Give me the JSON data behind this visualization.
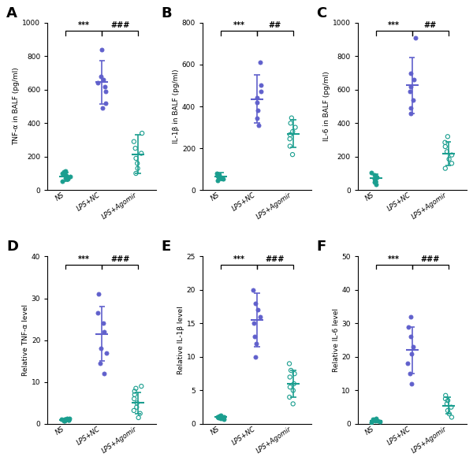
{
  "panels": [
    {
      "label": "A",
      "ylabel": "TNF-α in BALF (pg/ml)",
      "ylim": [
        0,
        1000
      ],
      "yticks": [
        0,
        200,
        400,
        600,
        800,
        1000
      ],
      "sig1": "***",
      "sig2": "###",
      "groups": [
        {
          "name": "NS",
          "color": "#1a9e8f",
          "filled": true,
          "mean": 80,
          "sd": 25,
          "points": [
            55,
            65,
            70,
            75,
            80,
            85,
            90,
            100,
            110,
            115
          ]
        },
        {
          "name": "LPS+NC",
          "color": "#6060cc",
          "filled": true,
          "mean": 645,
          "sd": 130,
          "points": [
            490,
            520,
            590,
            620,
            640,
            660,
            680,
            840
          ]
        },
        {
          "name": "LPS+Agomir",
          "color": "#1a9e8f",
          "filled": false,
          "mean": 215,
          "sd": 115,
          "points": [
            100,
            130,
            160,
            190,
            220,
            250,
            290,
            340
          ]
        }
      ]
    },
    {
      "label": "B",
      "ylabel": "IL-1β in BALF (pg/ml)",
      "ylim": [
        0,
        800
      ],
      "yticks": [
        0,
        200,
        400,
        600,
        800
      ],
      "sig1": "***",
      "sig2": "##",
      "groups": [
        {
          "name": "NS",
          "color": "#1a9e8f",
          "filled": true,
          "mean": 65,
          "sd": 18,
          "points": [
            45,
            55,
            58,
            62,
            65,
            68,
            72,
            80
          ]
        },
        {
          "name": "LPS+NC",
          "color": "#6060cc",
          "filled": true,
          "mean": 435,
          "sd": 115,
          "points": [
            310,
            345,
            380,
            420,
            440,
            470,
            500,
            610
          ]
        },
        {
          "name": "LPS+Agomir",
          "color": "#1a9e8f",
          "filled": false,
          "mean": 270,
          "sd": 65,
          "points": [
            170,
            210,
            245,
            265,
            280,
            300,
            320,
            345
          ]
        }
      ]
    },
    {
      "label": "C",
      "ylabel": "IL-6 in BALF (pg/ml)",
      "ylim": [
        0,
        1000
      ],
      "yticks": [
        0,
        200,
        400,
        600,
        800,
        1000
      ],
      "sig1": "***",
      "sig2": "##",
      "groups": [
        {
          "name": "NS",
          "color": "#1a9e8f",
          "filled": true,
          "mean": 72,
          "sd": 25,
          "points": [
            35,
            50,
            60,
            68,
            75,
            82,
            92,
            105
          ]
        },
        {
          "name": "LPS+NC",
          "color": "#6060cc",
          "filled": true,
          "mean": 625,
          "sd": 165,
          "points": [
            460,
            490,
            540,
            590,
            620,
            660,
            700,
            910
          ]
        },
        {
          "name": "LPS+Agomir",
          "color": "#1a9e8f",
          "filled": false,
          "mean": 218,
          "sd": 72,
          "points": [
            130,
            160,
            185,
            210,
            230,
            260,
            285,
            320
          ]
        }
      ]
    },
    {
      "label": "D",
      "ylabel": "Relative TNF-α level",
      "ylim": [
        0,
        40
      ],
      "yticks": [
        0,
        10,
        20,
        30,
        40
      ],
      "sig1": "***",
      "sig2": "###",
      "groups": [
        {
          "name": "NS",
          "color": "#1a9e8f",
          "filled": true,
          "mean": 1.0,
          "sd": 0.2,
          "points": [
            0.7,
            0.8,
            0.9,
            0.95,
            1.0,
            1.05,
            1.1,
            1.2,
            1.3,
            1.35
          ]
        },
        {
          "name": "LPS+NC",
          "color": "#6060cc",
          "filled": true,
          "mean": 21.5,
          "sd": 6.5,
          "points": [
            12,
            14.5,
            17,
            18,
            22,
            24,
            26.5,
            31
          ]
        },
        {
          "name": "LPS+Agomir",
          "color": "#1a9e8f",
          "filled": false,
          "mean": 5.0,
          "sd": 2.5,
          "points": [
            1.5,
            2.5,
            3.2,
            4.0,
            5.0,
            6.0,
            7.0,
            7.8,
            8.5,
            9.0
          ]
        }
      ]
    },
    {
      "label": "E",
      "ylabel": "Relative IL-1β level",
      "ylim": [
        0,
        25
      ],
      "yticks": [
        0,
        5,
        10,
        15,
        20,
        25
      ],
      "sig1": "***",
      "sig2": "###",
      "groups": [
        {
          "name": "NS",
          "color": "#1a9e8f",
          "filled": true,
          "mean": 1.0,
          "sd": 0.2,
          "points": [
            0.7,
            0.8,
            0.9,
            1.0,
            1.05,
            1.1,
            1.2,
            1.3
          ]
        },
        {
          "name": "LPS+NC",
          "color": "#6060cc",
          "filled": true,
          "mean": 15.5,
          "sd": 4.0,
          "points": [
            10,
            12,
            13,
            15,
            16,
            17,
            18,
            20
          ]
        },
        {
          "name": "LPS+Agomir",
          "color": "#1a9e8f",
          "filled": false,
          "mean": 6.0,
          "sd": 2.0,
          "points": [
            3.0,
            4.0,
            5.0,
            5.5,
            6.0,
            7.0,
            7.5,
            8.0,
            9.0
          ]
        }
      ]
    },
    {
      "label": "F",
      "ylabel": "Relative IL-6 level",
      "ylim": [
        0,
        50
      ],
      "yticks": [
        0,
        10,
        20,
        30,
        40,
        50
      ],
      "sig1": "***",
      "sig2": "###",
      "groups": [
        {
          "name": "NS",
          "color": "#1a9e8f",
          "filled": true,
          "mean": 1.0,
          "sd": 0.3,
          "points": [
            0.5,
            0.7,
            0.85,
            1.0,
            1.1,
            1.2,
            1.4,
            1.6
          ]
        },
        {
          "name": "LPS+NC",
          "color": "#6060cc",
          "filled": true,
          "mean": 22,
          "sd": 7.0,
          "points": [
            12,
            15,
            18,
            21,
            23,
            26,
            29,
            32
          ]
        },
        {
          "name": "LPS+Agomir",
          "color": "#1a9e8f",
          "filled": false,
          "mean": 5.5,
          "sd": 2.5,
          "points": [
            2.0,
            3.0,
            4.0,
            5.0,
            6.0,
            7.0,
            7.5,
            8.5
          ]
        }
      ]
    }
  ],
  "bg_color": "#ffffff"
}
